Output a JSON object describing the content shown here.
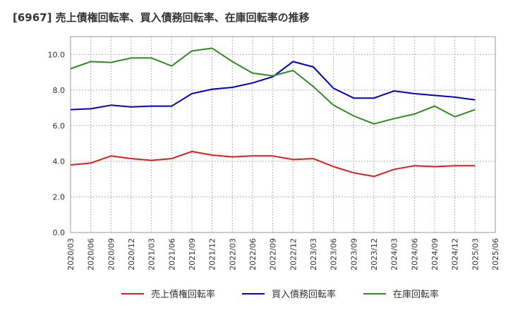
{
  "chart_data": {
    "type": "line",
    "title": "[6967]  売上債権回転率、買入債務回転率、在庫回転率の推移",
    "xlabel": "",
    "ylabel": "",
    "ylim": [
      0,
      11
    ],
    "y_ticks": [
      "0.0",
      "2.0",
      "4.0",
      "6.0",
      "8.0",
      "10.0"
    ],
    "y_tick_values": [
      0,
      2,
      4,
      6,
      8,
      10
    ],
    "grid": true,
    "legend_position": "bottom",
    "categories": [
      "2020/03",
      "2020/06",
      "2020/09",
      "2020/12",
      "2021/03",
      "2021/06",
      "2021/09",
      "2021/12",
      "2022/03",
      "2022/06",
      "2022/09",
      "2022/12",
      "2023/03",
      "2023/06",
      "2023/09",
      "2023/12",
      "2024/03",
      "2024/06",
      "2024/09",
      "2024/12",
      "2025/03",
      "2025/06"
    ],
    "series": [
      {
        "name": "売上債権回転率",
        "color": "#e31a1c",
        "values": [
          3.8,
          3.9,
          4.3,
          4.15,
          4.05,
          4.15,
          4.55,
          4.35,
          4.25,
          4.3,
          4.3,
          4.1,
          4.15,
          3.7,
          3.35,
          3.15,
          3.55,
          3.75,
          3.7,
          3.75,
          3.75,
          null
        ]
      },
      {
        "name": "買入債務回転率",
        "color": "#0000cc",
        "values": [
          6.9,
          6.95,
          7.15,
          7.05,
          7.1,
          7.1,
          7.8,
          8.05,
          8.15,
          8.4,
          8.75,
          9.6,
          9.3,
          8.1,
          7.55,
          7.55,
          7.95,
          7.8,
          7.7,
          7.6,
          7.45,
          null
        ]
      },
      {
        "name": "在庫回転率",
        "color": "#2e8b22",
        "values": [
          9.2,
          9.6,
          9.55,
          9.8,
          9.8,
          9.35,
          10.2,
          10.35,
          9.6,
          8.95,
          8.8,
          9.1,
          8.2,
          7.15,
          6.55,
          6.1,
          6.4,
          6.65,
          7.1,
          6.5,
          6.9,
          null
        ]
      }
    ]
  }
}
